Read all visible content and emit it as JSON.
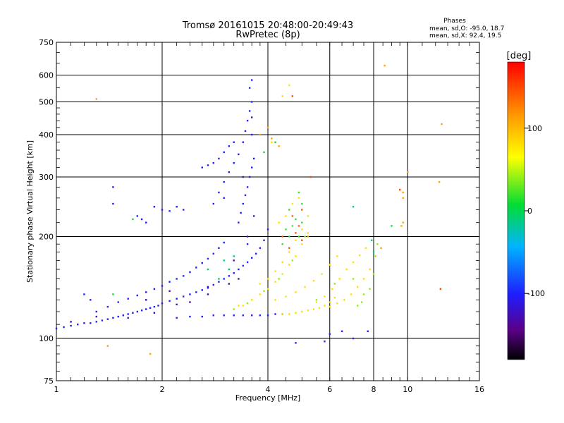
{
  "chart_data": {
    "type": "scatter",
    "title": "Tromsø 20161015 20:48:00-20:49:43",
    "subtitle": "RwPretec (8p)",
    "xlabel": "Frequency [MHz]",
    "ylabel": "Stationary phase Virtual Height [km]",
    "x_scale": "log",
    "y_scale": "log",
    "xlim": [
      1,
      16
    ],
    "ylim": [
      75,
      750
    ],
    "x_ticks": [
      1,
      2,
      4,
      6,
      8,
      10,
      16
    ],
    "x_tick_labels": [
      "1",
      "2",
      "4",
      "6",
      "8",
      "10",
      "16"
    ],
    "y_ticks": [
      75,
      100,
      200,
      300,
      400,
      500,
      600,
      750
    ],
    "y_tick_labels": [
      "75",
      "100",
      "200",
      "300",
      "400",
      "500",
      "600",
      "750"
    ],
    "grid": true,
    "stats": {
      "heading": "Phases",
      "line1": "mean, sd,O: -95.0, 18.7",
      "line2": "mean, sd,X:  92.4, 19.5"
    },
    "colorbar": {
      "label": "[deg]",
      "range": [
        -180,
        180
      ],
      "ticks": [
        100,
        0,
        -100
      ],
      "tick_labels": [
        "100",
        "0",
        "-100"
      ],
      "colormap": "rainbow"
    },
    "series": [
      {
        "color_phase": -100,
        "points": [
          [
            1.0,
            107
          ],
          [
            1.05,
            108
          ],
          [
            1.1,
            109
          ],
          [
            1.15,
            110
          ],
          [
            1.2,
            111
          ],
          [
            1.25,
            111
          ],
          [
            1.3,
            112
          ],
          [
            1.35,
            113
          ],
          [
            1.4,
            114
          ],
          [
            1.45,
            115
          ],
          [
            1.5,
            116
          ],
          [
            1.55,
            117
          ],
          [
            1.6,
            118
          ],
          [
            1.65,
            119
          ],
          [
            1.7,
            120
          ],
          [
            1.75,
            121
          ],
          [
            1.8,
            122
          ],
          [
            1.85,
            123
          ],
          [
            1.9,
            124
          ],
          [
            1.95,
            125
          ],
          [
            2.0,
            127
          ],
          [
            2.1,
            129
          ],
          [
            2.2,
            131
          ],
          [
            2.3,
            133
          ],
          [
            2.4,
            135
          ],
          [
            2.5,
            137
          ],
          [
            2.6,
            139
          ],
          [
            2.7,
            141
          ],
          [
            2.8,
            144
          ],
          [
            2.9,
            147
          ],
          [
            3.0,
            150
          ],
          [
            3.1,
            153
          ],
          [
            3.2,
            156
          ],
          [
            3.3,
            160
          ],
          [
            3.4,
            164
          ],
          [
            3.5,
            168
          ],
          [
            3.6,
            173
          ],
          [
            3.7,
            178
          ],
          [
            3.8,
            185
          ],
          [
            3.9,
            195
          ],
          [
            4.0,
            210
          ],
          [
            1.3,
            120
          ],
          [
            1.4,
            124
          ],
          [
            1.5,
            128
          ],
          [
            1.6,
            131
          ],
          [
            1.7,
            134
          ],
          [
            1.8,
            137
          ],
          [
            1.9,
            140
          ],
          [
            2.0,
            143
          ],
          [
            2.1,
            147
          ],
          [
            2.2,
            150
          ],
          [
            2.3,
            153
          ],
          [
            2.4,
            157
          ],
          [
            2.5,
            162
          ],
          [
            2.6,
            167
          ],
          [
            2.7,
            172
          ],
          [
            2.8,
            178
          ],
          [
            2.9,
            185
          ],
          [
            3.0,
            192
          ],
          [
            2.2,
            115
          ],
          [
            2.4,
            116
          ],
          [
            2.6,
            116
          ],
          [
            2.8,
            117
          ],
          [
            3.0,
            117
          ],
          [
            3.2,
            117
          ],
          [
            3.4,
            117
          ],
          [
            3.6,
            117
          ],
          [
            3.8,
            117
          ],
          [
            4.0,
            117
          ],
          [
            4.2,
            118
          ],
          [
            4.4,
            118
          ],
          [
            2.8,
            250
          ],
          [
            2.9,
            270
          ],
          [
            3.0,
            290
          ],
          [
            3.1,
            310
          ],
          [
            3.2,
            330
          ],
          [
            3.3,
            350
          ],
          [
            3.4,
            380
          ],
          [
            3.45,
            410
          ],
          [
            3.5,
            440
          ],
          [
            3.55,
            470
          ],
          [
            3.6,
            500
          ],
          [
            3.3,
            220
          ],
          [
            3.35,
            235
          ],
          [
            3.4,
            250
          ],
          [
            3.45,
            265
          ],
          [
            3.5,
            280
          ],
          [
            3.55,
            300
          ],
          [
            3.6,
            320
          ],
          [
            3.65,
            340
          ],
          [
            2.6,
            320
          ],
          [
            2.7,
            325
          ],
          [
            2.8,
            330
          ],
          [
            2.9,
            340
          ],
          [
            3.0,
            355
          ],
          [
            3.1,
            370
          ],
          [
            3.2,
            380
          ],
          [
            1.7,
            230
          ],
          [
            1.75,
            225
          ],
          [
            1.8,
            220
          ],
          [
            1.9,
            245
          ],
          [
            2.0,
            240
          ],
          [
            2.1,
            238
          ],
          [
            2.2,
            245
          ],
          [
            2.3,
            240
          ],
          [
            1.45,
            280
          ],
          [
            1.45,
            250
          ],
          [
            1.2,
            135
          ],
          [
            1.25,
            130
          ],
          [
            3.6,
            580
          ],
          [
            3.55,
            550
          ],
          [
            6.5,
            105
          ],
          [
            7.0,
            100
          ],
          [
            6.0,
            103
          ],
          [
            5.8,
            98
          ],
          [
            4.8,
            97
          ],
          [
            7.7,
            105
          ],
          [
            3.6,
            400
          ],
          [
            3.5,
            190
          ],
          [
            3.65,
            230
          ],
          [
            3.0,
            260
          ]
        ]
      },
      {
        "color_phase": -130,
        "points": [
          [
            1.1,
            112
          ],
          [
            1.3,
            116
          ],
          [
            1.6,
            115
          ],
          [
            1.9,
            119
          ],
          [
            2.2,
            126
          ],
          [
            2.7,
            142
          ],
          [
            3.2,
            170
          ],
          [
            3.5,
            200
          ],
          [
            3.4,
            300
          ],
          [
            3.6,
            450
          ],
          [
            2.4,
            128
          ],
          [
            2.7,
            135
          ],
          [
            1.8,
            130
          ],
          [
            2.1,
            138
          ],
          [
            3.1,
            145
          ],
          [
            3.3,
            150
          ]
        ]
      },
      {
        "color_phase": 80,
        "points": [
          [
            3.4,
            125
          ],
          [
            3.6,
            130
          ],
          [
            3.8,
            135
          ],
          [
            4.0,
            140
          ],
          [
            4.2,
            147
          ],
          [
            4.4,
            155
          ],
          [
            4.6,
            165
          ],
          [
            4.8,
            175
          ],
          [
            5.0,
            190
          ],
          [
            5.2,
            205
          ],
          [
            3.8,
            145
          ],
          [
            4.0,
            150
          ],
          [
            4.2,
            158
          ],
          [
            4.4,
            168
          ],
          [
            4.6,
            180
          ],
          [
            4.8,
            195
          ],
          [
            5.0,
            210
          ],
          [
            5.2,
            230
          ],
          [
            4.2,
            130
          ],
          [
            4.5,
            133
          ],
          [
            4.8,
            137
          ],
          [
            5.1,
            142
          ],
          [
            5.4,
            148
          ],
          [
            5.7,
            155
          ],
          [
            6.0,
            165
          ],
          [
            6.3,
            175
          ],
          [
            4.4,
            118
          ],
          [
            4.6,
            118
          ],
          [
            4.8,
            119
          ],
          [
            5.0,
            120
          ],
          [
            5.2,
            121
          ],
          [
            5.4,
            122
          ],
          [
            5.6,
            123
          ],
          [
            5.8,
            125
          ],
          [
            6.0,
            128
          ],
          [
            6.2,
            132
          ],
          [
            5.5,
            128
          ],
          [
            5.8,
            133
          ],
          [
            6.1,
            140
          ],
          [
            6.4,
            150
          ],
          [
            6.7,
            160
          ],
          [
            7.0,
            168
          ],
          [
            7.3,
            176
          ],
          [
            7.6,
            185
          ],
          [
            6.0,
            124
          ],
          [
            6.3,
            127
          ],
          [
            6.6,
            130
          ],
          [
            6.9,
            135
          ],
          [
            7.2,
            142
          ],
          [
            7.5,
            150
          ],
          [
            7.8,
            160
          ],
          [
            4.5,
            230
          ],
          [
            4.7,
            250
          ],
          [
            4.9,
            260
          ],
          [
            4.3,
            220
          ],
          [
            4.1,
            380
          ],
          [
            4.4,
            520
          ],
          [
            4.6,
            560
          ],
          [
            3.3,
            125
          ]
        ]
      },
      {
        "color_phase": 40,
        "points": [
          [
            3.2,
            122
          ],
          [
            3.5,
            127
          ],
          [
            3.9,
            138
          ],
          [
            4.3,
            150
          ],
          [
            4.7,
            170
          ],
          [
            5.1,
            200
          ],
          [
            5.5,
            130
          ],
          [
            6.2,
            145
          ],
          [
            7.0,
            150
          ],
          [
            7.4,
            128
          ],
          [
            7.8,
            140
          ],
          [
            8.0,
            155
          ],
          [
            8.1,
            175
          ],
          [
            8.2,
            190
          ],
          [
            7.5,
            135
          ],
          [
            7.2,
            125
          ]
        ]
      },
      {
        "color_phase": 20,
        "points": [
          [
            4.5,
            210
          ],
          [
            4.6,
            200
          ],
          [
            4.7,
            215
          ],
          [
            4.8,
            225
          ],
          [
            4.9,
            200
          ],
          [
            5.0,
            220
          ],
          [
            4.4,
            190
          ],
          [
            4.6,
            240
          ],
          [
            4.9,
            270
          ],
          [
            5.0,
            250
          ]
        ]
      },
      {
        "color_phase": 140,
        "points": [
          [
            4.4,
            200
          ],
          [
            4.6,
            185
          ],
          [
            4.7,
            230
          ],
          [
            4.8,
            205
          ],
          [
            5.0,
            240
          ],
          [
            4.9,
            215
          ],
          [
            5.0,
            195
          ]
        ]
      },
      {
        "color_phase": -10,
        "points": [
          [
            2.7,
            160
          ],
          [
            3.0,
            170
          ],
          [
            3.1,
            160
          ],
          [
            2.9,
            150
          ],
          [
            3.2,
            175
          ],
          [
            7.9,
            195
          ],
          [
            8.0,
            180
          ],
          [
            7.0,
            245
          ]
        ]
      },
      {
        "color_phase": 110,
        "points": [
          [
            1.3,
            510
          ],
          [
            12.5,
            430
          ],
          [
            12.3,
            290
          ],
          [
            10.0,
            310
          ],
          [
            9.7,
            260
          ],
          [
            9.7,
            270
          ],
          [
            9.6,
            215
          ],
          [
            9.7,
            220
          ],
          [
            8.6,
            640
          ],
          [
            8.4,
            185
          ],
          [
            1.4,
            95
          ],
          [
            1.85,
            90
          ],
          [
            5.2,
            200
          ],
          [
            4.3,
            370
          ],
          [
            4.1,
            390
          ],
          [
            3.8,
            400
          ],
          [
            4.0,
            420
          ]
        ]
      },
      {
        "color_phase": 150,
        "points": [
          [
            12.4,
            140
          ],
          [
            9.5,
            275
          ],
          [
            5.3,
            300
          ],
          [
            4.7,
            520
          ]
        ]
      },
      {
        "color_phase": 10,
        "points": [
          [
            9.0,
            215
          ],
          [
            1.65,
            225
          ],
          [
            4.2,
            380
          ],
          [
            3.9,
            355
          ],
          [
            1.45,
            135
          ]
        ]
      }
    ]
  }
}
